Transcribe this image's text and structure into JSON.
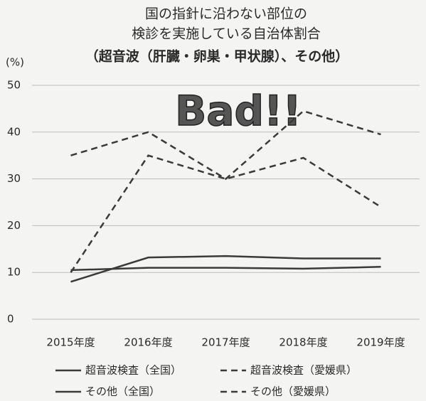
{
  "chart_data": {
    "type": "line",
    "title": [
      "国の指針に沿わない部位の",
      "検診を実施している自治体割合",
      "（超音波（肝臓・卵巣・甲状腺）、その他）"
    ],
    "y_axis_label": "(%)",
    "annotation": "Bad!!",
    "categories": [
      "2015年度",
      "2016年度",
      "2017年度",
      "2018年度",
      "2019年度"
    ],
    "series": [
      {
        "name": "超音波検査（全国）",
        "color": "#3a3a3a",
        "style": "solid",
        "values": [
          8,
          13.2,
          13.5,
          13,
          13
        ]
      },
      {
        "name": "超音波検査（愛媛県）",
        "color": "#3a3a3a",
        "style": "dashed",
        "values": [
          35,
          40,
          30,
          44.5,
          39.5
        ]
      },
      {
        "name": "その他（全国）",
        "color": "#3a3a3a",
        "style": "solid",
        "values": [
          10.5,
          11,
          11,
          10.8,
          11.2
        ]
      },
      {
        "name": "その他（愛媛県）",
        "color": "#3a3a3a",
        "style": "dashed",
        "values": [
          10,
          35,
          30,
          34.5,
          24
        ]
      }
    ],
    "ylim": [
      0,
      50
    ],
    "yticks": [
      0,
      10,
      20,
      30,
      40,
      50
    ],
    "grid": true
  }
}
